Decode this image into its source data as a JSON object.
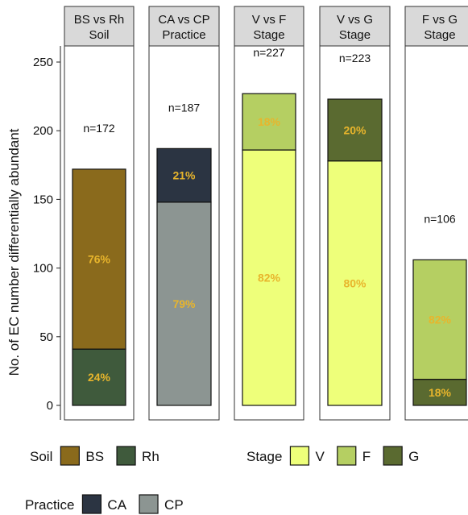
{
  "chart_data": {
    "type": "bar",
    "stacked": true,
    "ylabel": "No. of EC number differentially abundant",
    "ylim": [
      0,
      260
    ],
    "yticks": [
      0,
      50,
      100,
      150,
      200,
      250
    ],
    "grid": false,
    "facets": [
      {
        "strip": [
          "BS vs Rh",
          "Soil"
        ],
        "n_label": "n=172",
        "total": 172,
        "segments": [
          {
            "name": "Rh",
            "value": 41,
            "label": "24%",
            "color": "#3f5a3c"
          },
          {
            "name": "BS",
            "value": 131,
            "label": "76%",
            "color": "#8a6a1c"
          }
        ]
      },
      {
        "strip": [
          "CA vs CP",
          "Practice"
        ],
        "n_label": "n=187",
        "total": 187,
        "segments": [
          {
            "name": "CP",
            "value": 148,
            "label": "79%",
            "color": "#8c9592"
          },
          {
            "name": "CA",
            "value": 39,
            "label": "21%",
            "color": "#2b3442"
          }
        ]
      },
      {
        "strip": [
          "V vs F",
          "Stage"
        ],
        "n_label": "n=227",
        "total": 227,
        "segments": [
          {
            "name": "V",
            "value": 186,
            "label": "82%",
            "color": "#eeff7a"
          },
          {
            "name": "F",
            "value": 41,
            "label": "18%",
            "color": "#b5cf62"
          }
        ]
      },
      {
        "strip": [
          "V vs G",
          "Stage"
        ],
        "n_label": "n=223",
        "total": 223,
        "segments": [
          {
            "name": "V",
            "value": 178,
            "label": "80%",
            "color": "#eeff7a"
          },
          {
            "name": "G",
            "value": 45,
            "label": "20%",
            "color": "#5a6a30"
          }
        ]
      },
      {
        "strip": [
          "F vs G",
          "Stage"
        ],
        "n_label": "n=106",
        "total": 106,
        "segments": [
          {
            "name": "G",
            "value": 19,
            "label": "18%",
            "color": "#5a6a30"
          },
          {
            "name": "F",
            "value": 87,
            "label": "82%",
            "color": "#b5cf62"
          }
        ]
      }
    ],
    "legend": [
      {
        "title": "Soil",
        "items": [
          {
            "label": "BS",
            "color": "#8a6a1c"
          },
          {
            "label": "Rh",
            "color": "#3f5a3c"
          }
        ]
      },
      {
        "title": "Stage",
        "items": [
          {
            "label": "V",
            "color": "#eeff7a"
          },
          {
            "label": "F",
            "color": "#b5cf62"
          },
          {
            "label": "G",
            "color": "#5a6a30"
          }
        ]
      },
      {
        "title": "Practice",
        "items": [
          {
            "label": "CA",
            "color": "#2b3442"
          },
          {
            "label": "CP",
            "color": "#8c9592"
          }
        ]
      }
    ]
  }
}
